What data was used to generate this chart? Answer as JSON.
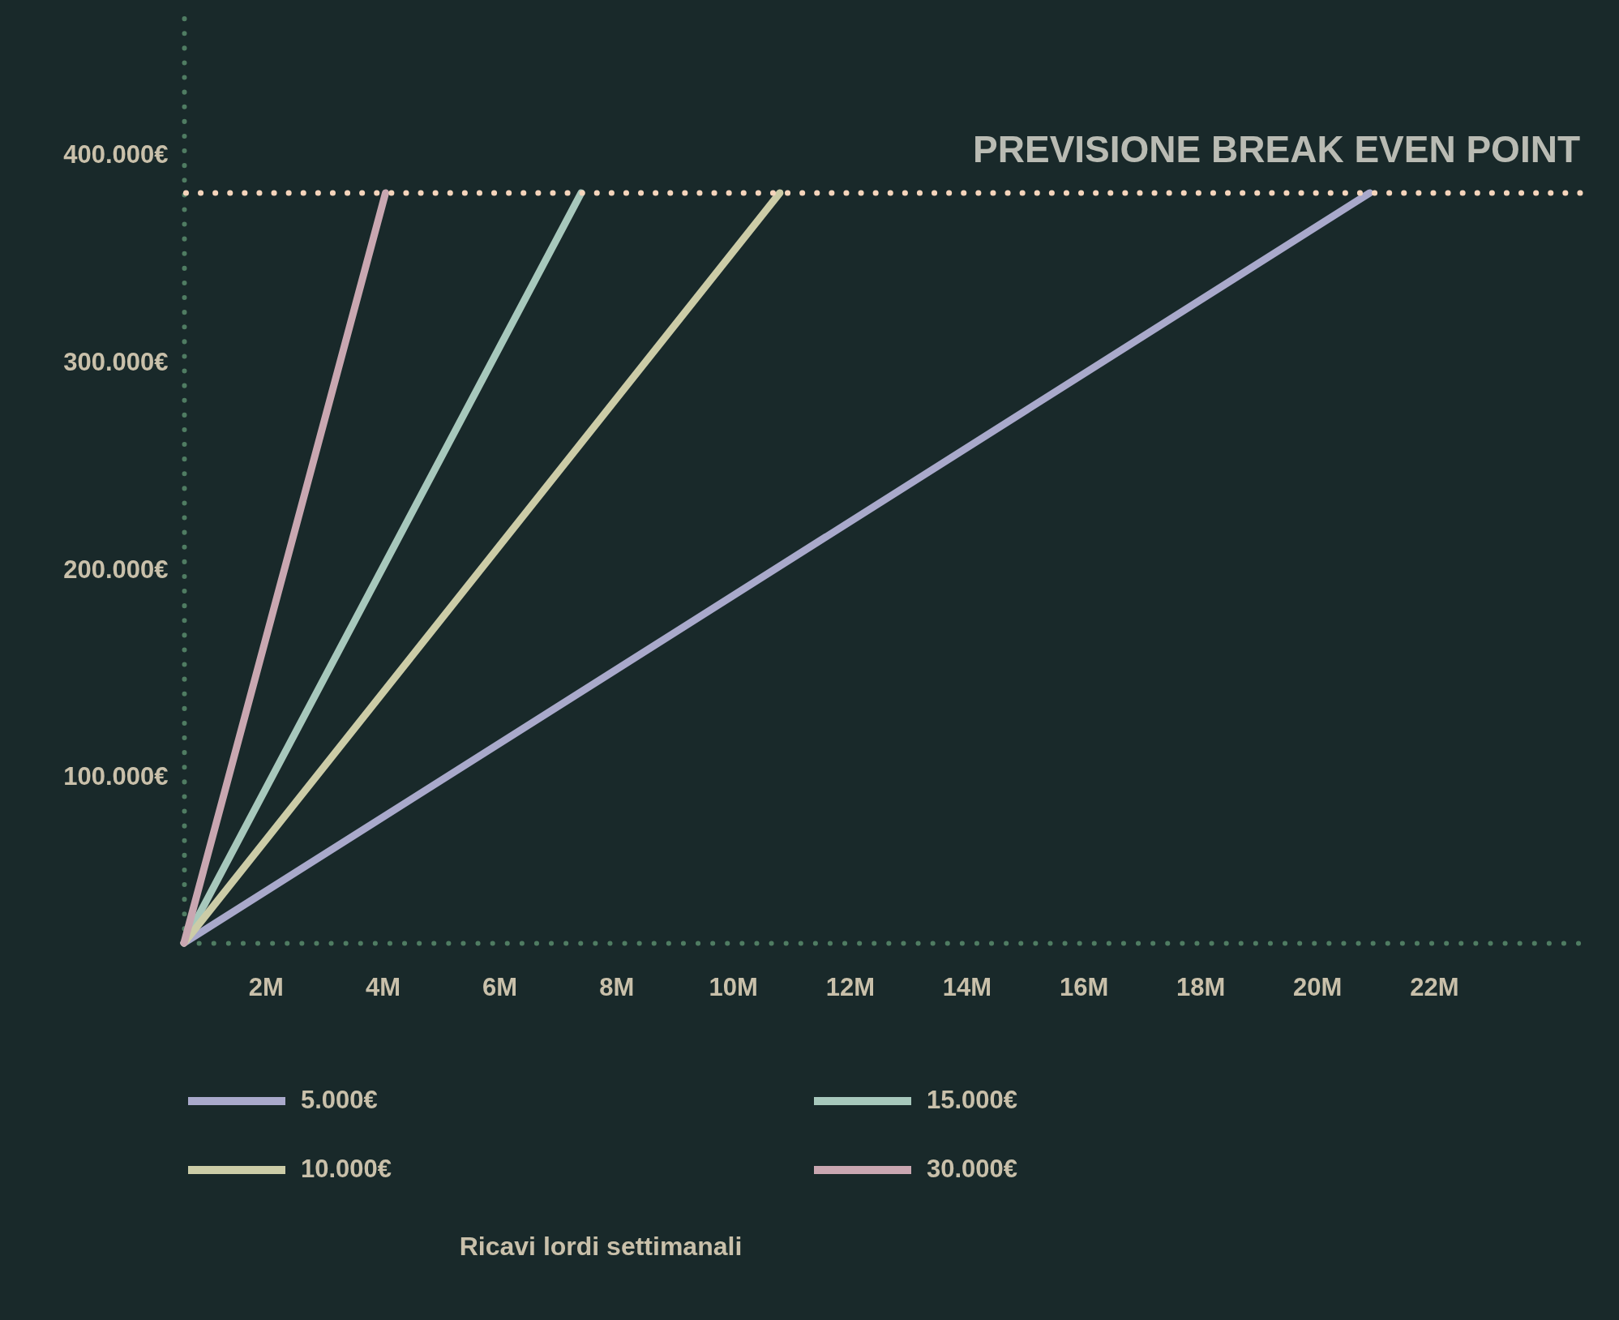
{
  "chart_data": {
    "type": "line",
    "legend_title": "Ricavi lordi settimanali",
    "xlim": [
      0.6,
      24.5
    ],
    "ylim": [
      20000,
      470000
    ],
    "xticks": [
      {
        "value": 2,
        "label": "2M"
      },
      {
        "value": 4,
        "label": "4M"
      },
      {
        "value": 6,
        "label": "6M"
      },
      {
        "value": 8,
        "label": "8M"
      },
      {
        "value": 10,
        "label": "10M"
      },
      {
        "value": 12,
        "label": "12M"
      },
      {
        "value": 14,
        "label": "14M"
      },
      {
        "value": 16,
        "label": "16M"
      },
      {
        "value": 18,
        "label": "18M"
      },
      {
        "value": 20,
        "label": "20M"
      },
      {
        "value": 22,
        "label": "22M"
      }
    ],
    "yticks": [
      {
        "value": 100000,
        "label": "100.000€"
      },
      {
        "value": 200000,
        "label": "200.000€"
      },
      {
        "value": 300000,
        "label": "300.000€"
      },
      {
        "value": 400000,
        "label": "400.000€"
      }
    ],
    "series": [
      {
        "name": "5.000€",
        "color": "#a9a9cb",
        "x": [
          0.6,
          20.9
        ],
        "values": [
          20000,
          382000
        ]
      },
      {
        "name": "15.000€",
        "color": "#a7c8bc",
        "x": [
          0.6,
          7.4
        ],
        "values": [
          20000,
          382000
        ]
      },
      {
        "name": "10.000€",
        "color": "#cccca7",
        "x": [
          0.6,
          10.8
        ],
        "values": [
          20000,
          382000
        ]
      },
      {
        "name": "30.000€",
        "color": "#c9a7b1",
        "x": [
          0.6,
          4.05
        ],
        "values": [
          20000,
          382000
        ]
      }
    ],
    "ref_lines": [
      {
        "axis": "y",
        "value": 382000,
        "label": "PREVISIONE BREAK EVEN POINT",
        "color": "#f4d4bb",
        "line_style": "dotted"
      }
    ],
    "legend": "bottom",
    "grid": false,
    "line_style": "solid",
    "marker": "none"
  }
}
